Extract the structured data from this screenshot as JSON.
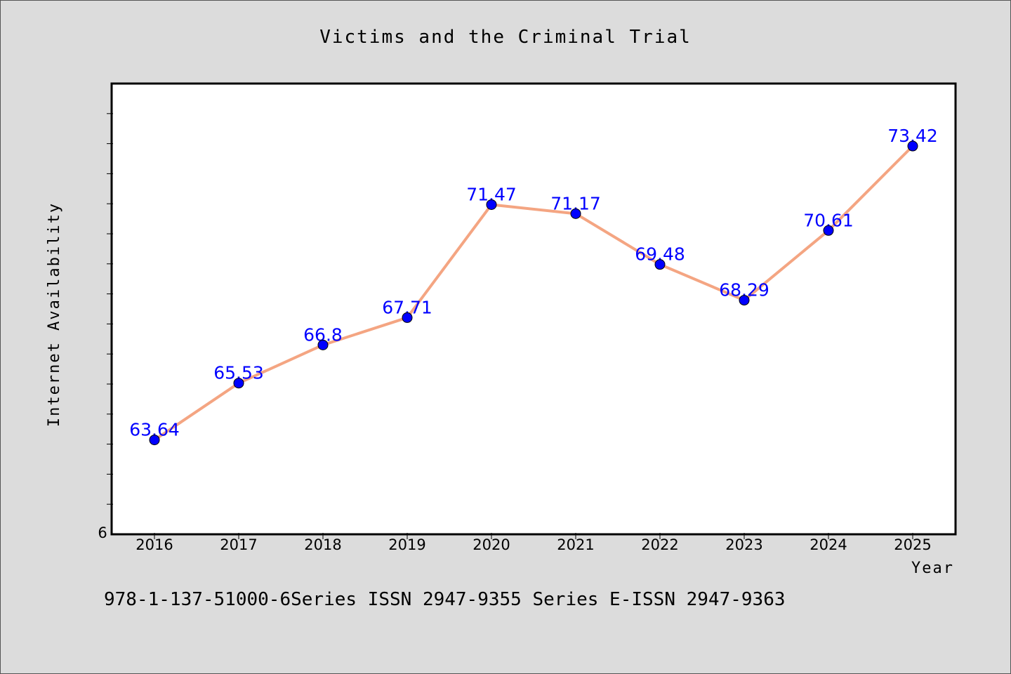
{
  "chart_data": {
    "type": "line",
    "title": "Victims and the Criminal Trial",
    "xlabel": "Year",
    "ylabel": "Internet Availability",
    "y_tick_label": "6",
    "categories": [
      "2016",
      "2017",
      "2018",
      "2019",
      "2020",
      "2021",
      "2022",
      "2023",
      "2024",
      "2025"
    ],
    "series": [
      {
        "values": [
          63.64,
          65.53,
          66.8,
          67.71,
          71.47,
          71.17,
          69.48,
          68.29,
          70.61,
          73.42
        ],
        "labels": [
          "63.64",
          "65.53",
          "66.8",
          "67.71",
          "71.47",
          "71.17",
          "69.48",
          "68.29",
          "70.61",
          "73.42"
        ],
        "line_color": "#f4a582",
        "marker_color": "#0000ff"
      }
    ],
    "ylim": [
      60.5,
      75.5
    ],
    "grid": false,
    "legend": "none"
  },
  "footer_text": "978-1-137-51000-6Series ISSN 2947-9355 Series E-ISSN 2947-9363"
}
